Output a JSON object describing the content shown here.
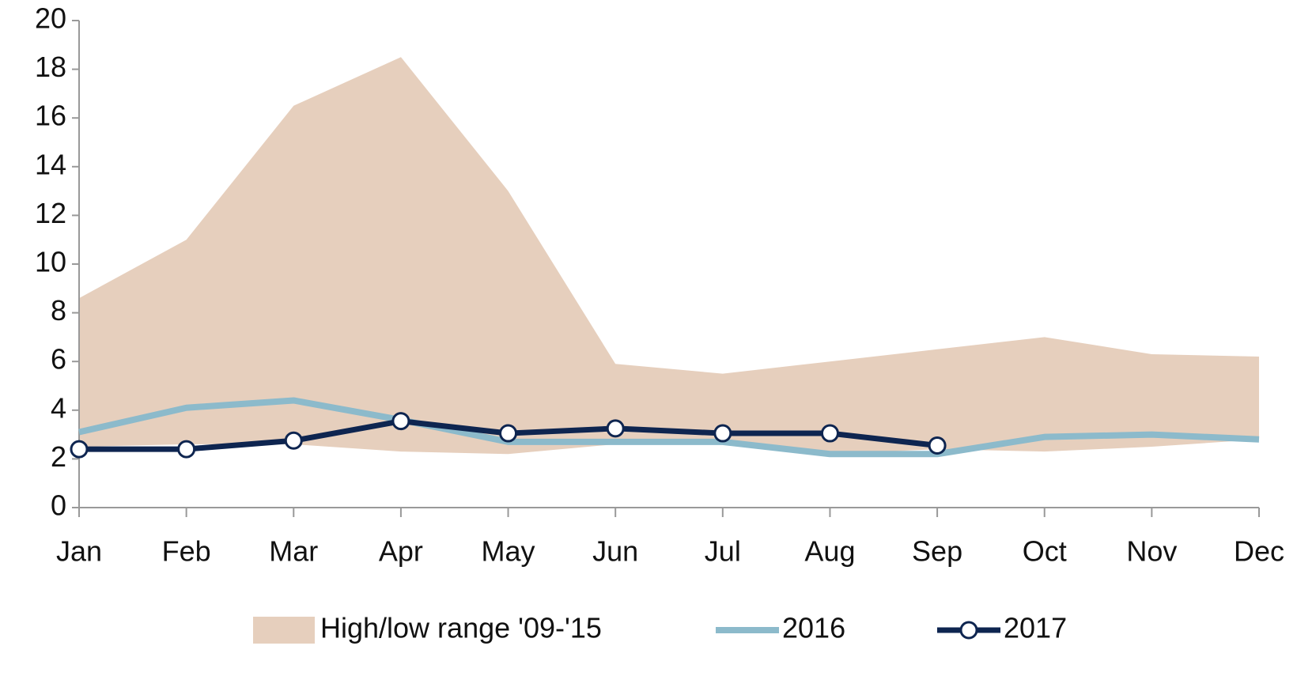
{
  "chart_data": {
    "type": "line",
    "categories": [
      "Jan",
      "Feb",
      "Mar",
      "Apr",
      "May",
      "Jun",
      "Jul",
      "Aug",
      "Sep",
      "Oct",
      "Nov",
      "Dec"
    ],
    "ylim": [
      0,
      20
    ],
    "yticks": [
      0,
      2,
      4,
      6,
      8,
      10,
      12,
      14,
      16,
      18,
      20
    ],
    "grid": false,
    "legend": "bottom",
    "series": [
      {
        "name": "High/low range '09-'15",
        "kind": "range",
        "color": "#e6cfbd",
        "high": [
          8.6,
          11,
          16.5,
          18.5,
          13,
          5.9,
          5.5,
          6,
          6.5,
          7,
          6.3,
          6.2
        ],
        "low": [
          2.5,
          2.6,
          2.6,
          2.3,
          2.2,
          2.6,
          2.6,
          2.2,
          2.4,
          2.3,
          2.5,
          2.8
        ]
      },
      {
        "name": "2016",
        "kind": "line",
        "color": "#8cbacb",
        "values": [
          3.1,
          4.1,
          4.4,
          3.6,
          2.7,
          2.7,
          2.7,
          2.2,
          2.2,
          2.9,
          3.0,
          2.8
        ]
      },
      {
        "name": "2017",
        "kind": "line-markers",
        "color": "#0e2550",
        "values": [
          2.4,
          2.4,
          2.75,
          3.55,
          3.05,
          3.25,
          3.05,
          3.05,
          2.55,
          null,
          null,
          null
        ]
      }
    ]
  }
}
